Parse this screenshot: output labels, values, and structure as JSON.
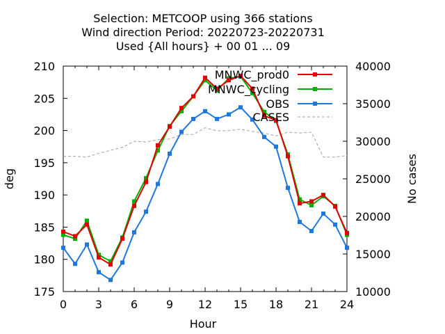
{
  "chart_data": {
    "type": "line",
    "title_lines": [
      "Selection: METCOOP using   366 stations",
      "Wind direction   Period: 20220723-20220731",
      "Used {All hours} + 00 01 ... 09"
    ],
    "xlabel": "Hour",
    "ylabel": "deg",
    "y2label": "No cases",
    "xlim": [
      0,
      24
    ],
    "ylim": [
      175,
      210
    ],
    "y2lim": [
      10000,
      40000
    ],
    "xticks": [
      "0",
      "3",
      "6",
      "9",
      "12",
      "15",
      "18",
      "21",
      "24"
    ],
    "yticks": [
      "175",
      "180",
      "185",
      "190",
      "195",
      "200",
      "205",
      "210"
    ],
    "y2ticks": [
      "10000",
      "15000",
      "20000",
      "25000",
      "30000",
      "35000",
      "40000"
    ],
    "grid": false,
    "legend_position": "top-right",
    "x": [
      0,
      1,
      2,
      3,
      4,
      5,
      6,
      7,
      8,
      9,
      10,
      11,
      12,
      13,
      14,
      15,
      16,
      17,
      18,
      19,
      20,
      21,
      22,
      23,
      24
    ],
    "series": [
      {
        "name": "MNWC_prod0",
        "color": "#e00000",
        "marker": "square",
        "axis": "left",
        "values": [
          184.3,
          183.6,
          185.4,
          180.3,
          179.2,
          183.2,
          188.3,
          192.0,
          197.7,
          200.6,
          203.5,
          205.3,
          208.2,
          206.5,
          207.8,
          208.5,
          206.5,
          202.3,
          201.6,
          196.0,
          188.7,
          189.0,
          190.0,
          188.2,
          184.1
        ]
      },
      {
        "name": "MNWC_cycling",
        "color": "#00b000",
        "marker": "square",
        "axis": "left",
        "values": [
          183.8,
          183.2,
          186.0,
          180.7,
          179.7,
          183.4,
          189.0,
          192.6,
          196.9,
          200.7,
          203.0,
          205.3,
          207.8,
          206.2,
          208.1,
          208.4,
          205.8,
          202.9,
          201.5,
          196.3,
          189.3,
          188.4,
          189.8,
          188.3,
          183.8
        ]
      },
      {
        "name": "OBS",
        "color": "#1e78dc",
        "marker": "square",
        "axis": "left",
        "values": [
          181.8,
          179.3,
          182.3,
          178.0,
          176.8,
          179.5,
          184.2,
          187.4,
          191.7,
          196.4,
          199.8,
          201.8,
          203.0,
          201.8,
          202.5,
          203.6,
          201.7,
          199.0,
          197.5,
          191.1,
          185.8,
          184.4,
          187.1,
          185.4,
          181.8
        ]
      },
      {
        "name": "CASES",
        "color": "#a0a0a0",
        "marker": "none",
        "dashed": true,
        "axis": "right",
        "values": [
          28000,
          28000,
          27900,
          28400,
          28800,
          29200,
          30000,
          29900,
          30200,
          30300,
          30900,
          30900,
          31800,
          31400,
          31400,
          31600,
          31300,
          31100,
          30700,
          31200,
          31100,
          31200,
          27900,
          27900,
          28100
        ]
      }
    ]
  }
}
